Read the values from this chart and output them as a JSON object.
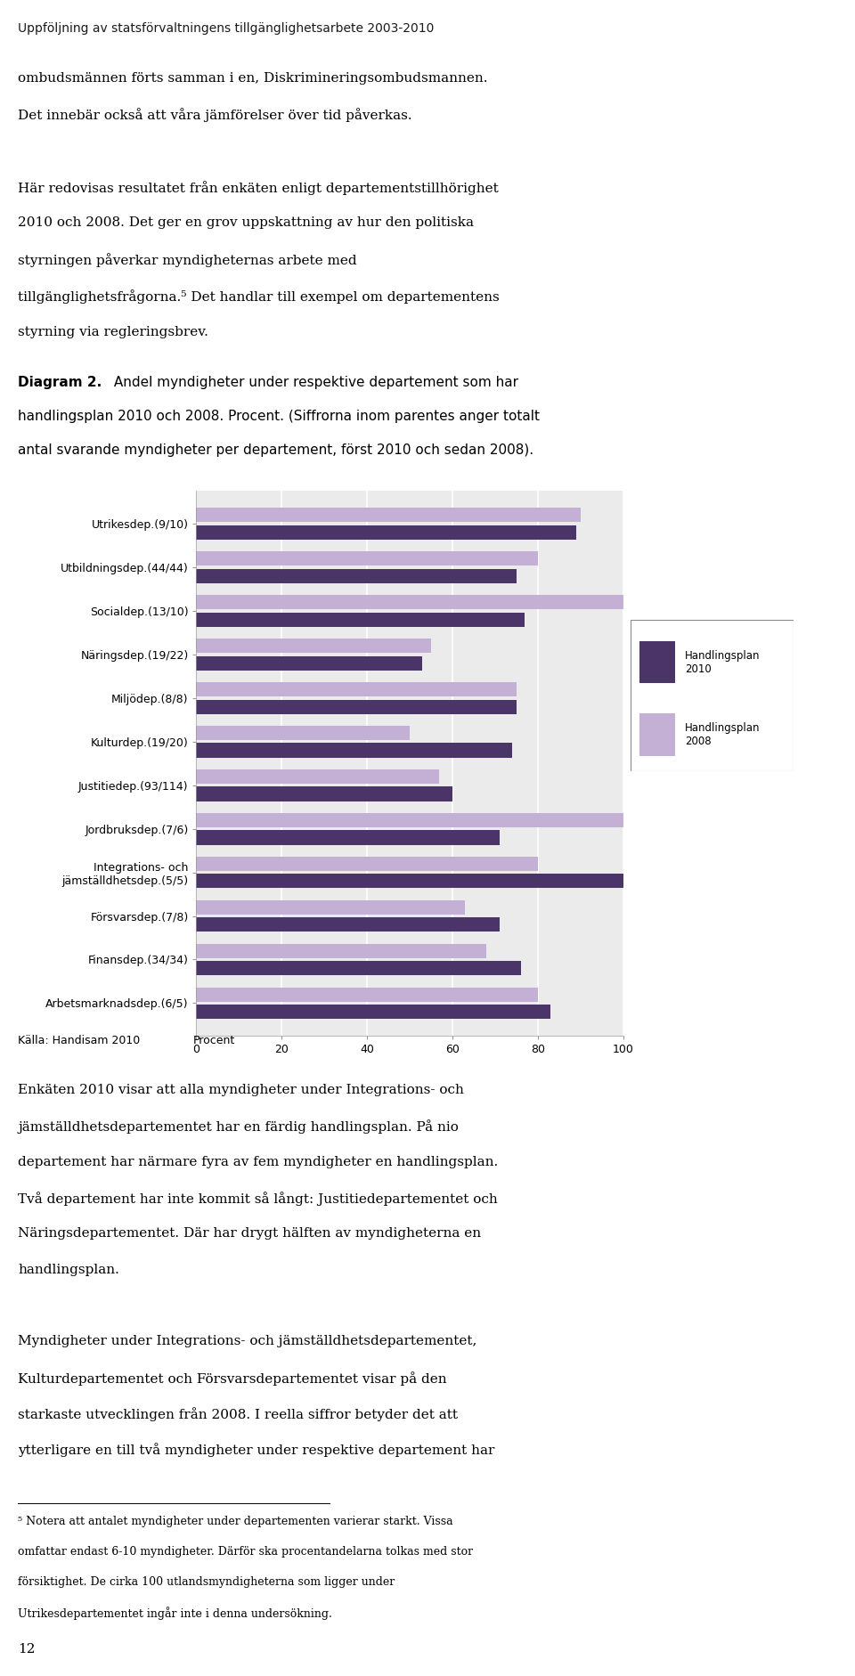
{
  "title": "Uppföljning av statsförvaltningens tillgänglighetsarbete 2003-2010",
  "categories": [
    "Utrikesdep.(9/10)",
    "Utbildningsdep.(44/44)",
    "Socialdep.(13/10)",
    "Näringsdep.(19/22)",
    "Miljödep.(8/8)",
    "Kulturdep.(19/20)",
    "Justitiedep.(93/114)",
    "Jordbruksdep.(7/6)",
    "Integrations- och\njämställdhetsdep.(5/5)",
    "Försvarsdep.(7/8)",
    "Finansdep.(34/34)",
    "Arbetsmarknadsdep.(6/5)"
  ],
  "values_2010": [
    89,
    75,
    77,
    53,
    75,
    74,
    60,
    71,
    100,
    71,
    76,
    83
  ],
  "values_2008": [
    90,
    80,
    100,
    55,
    75,
    50,
    57,
    100,
    80,
    63,
    68,
    80
  ],
  "color_2010": "#4B3468",
  "color_2008": "#C4B0D5",
  "legend_2010": "Handlingsplan\n2010",
  "legend_2008": "Handlingsplan\n2008",
  "xlabel": "Procent",
  "xlim": [
    0,
    100
  ],
  "xticks": [
    0,
    20,
    40,
    60,
    80,
    100
  ],
  "source": "Källa: Handisam 2010",
  "title_color": "#3B3B3B",
  "chart_bg": "#EBEBEB",
  "grid_color": "#FFFFFF",
  "page_number": "12"
}
